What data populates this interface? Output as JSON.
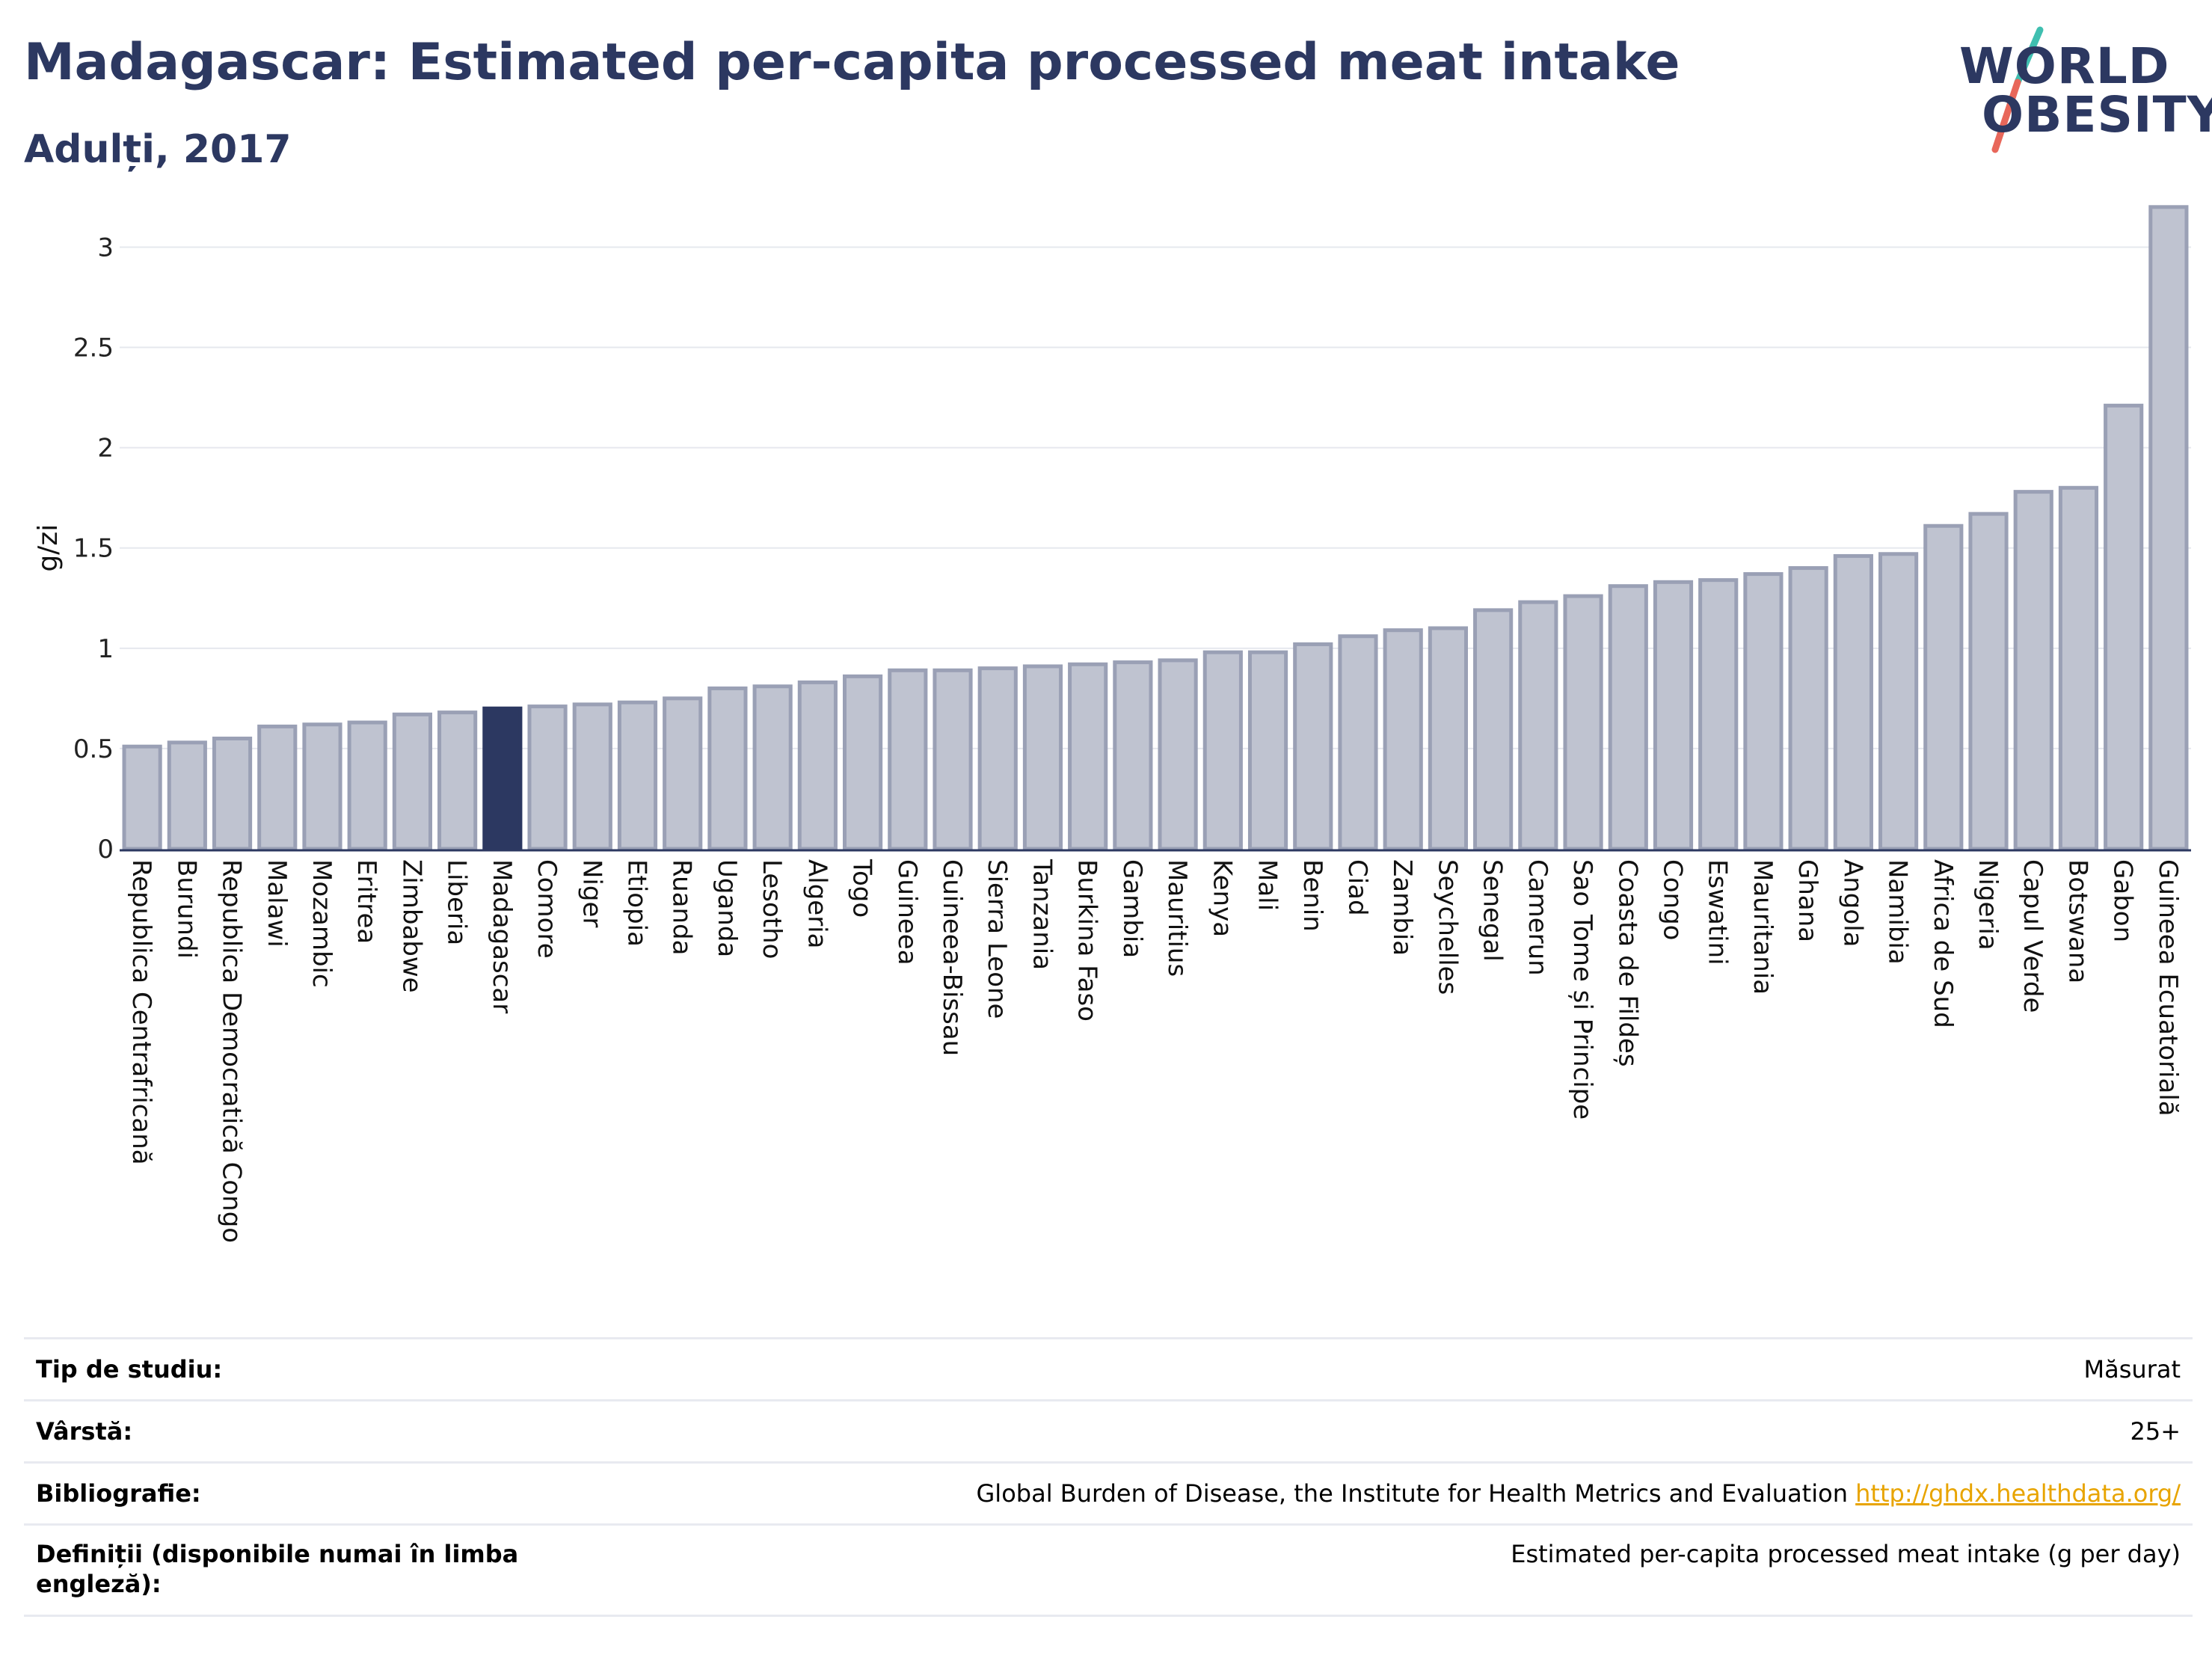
{
  "header": {
    "title": "Madagascar: Estimated per-capita processed meat intake",
    "subtitle": "Adulți, 2017"
  },
  "logo": {
    "line1": "WORLD",
    "line2": "OBESITY",
    "colors": {
      "navy": "#2c3861",
      "teal": "#3fbfb0",
      "coral": "#e8675a"
    }
  },
  "chart_data": {
    "type": "bar",
    "ylabel": "g/zi",
    "xlabel": "",
    "ylim": [
      0,
      3.3
    ],
    "yticks": [
      0,
      0.5,
      1,
      1.5,
      2,
      2.5,
      3
    ],
    "ytick_labels": [
      "0",
      "0.5",
      "1",
      "1.5",
      "2",
      "2.5",
      "3"
    ],
    "grid": true,
    "highlight": "Madagascar",
    "colors": {
      "bar": "#bfc3d0",
      "bar_outline": "#9aa0b5",
      "highlight": "#2c3861",
      "grid": "#e6e8ee",
      "axis": "#2c3861"
    },
    "categories": [
      "Republica Centrafricană",
      "Burundi",
      "Republica Democratică Congo",
      "Malawi",
      "Mozambic",
      "Eritrea",
      "Zimbabwe",
      "Liberia",
      "Madagascar",
      "Comore",
      "Niger",
      "Etiopia",
      "Ruanda",
      "Uganda",
      "Lesotho",
      "Algeria",
      "Togo",
      "Guineea",
      "Guineea-Bissau",
      "Sierra Leone",
      "Tanzania",
      "Burkina Faso",
      "Gambia",
      "Mauritius",
      "Kenya",
      "Mali",
      "Benin",
      "Ciad",
      "Zambia",
      "Seychelles",
      "Senegal",
      "Camerun",
      "Sao Tome și Principe",
      "Coasta de Fildeș",
      "Congo",
      "Eswatini",
      "Mauritania",
      "Ghana",
      "Angola",
      "Namibia",
      "Africa de Sud",
      "Nigeria",
      "Capul Verde",
      "Botswana",
      "Gabon",
      "Guineea Ecuatorială"
    ],
    "values": [
      0.51,
      0.53,
      0.55,
      0.61,
      0.62,
      0.63,
      0.67,
      0.68,
      0.7,
      0.71,
      0.72,
      0.73,
      0.75,
      0.8,
      0.81,
      0.83,
      0.86,
      0.89,
      0.89,
      0.9,
      0.91,
      0.92,
      0.93,
      0.94,
      0.98,
      0.98,
      1.02,
      1.06,
      1.09,
      1.1,
      1.19,
      1.23,
      1.26,
      1.31,
      1.33,
      1.34,
      1.37,
      1.4,
      1.46,
      1.47,
      1.61,
      1.67,
      1.78,
      1.8,
      2.21,
      3.2
    ]
  },
  "meta": [
    {
      "label": "Tip de studiu:",
      "value": "Măsurat"
    },
    {
      "label": "Vârstă:",
      "value": "25+"
    },
    {
      "label": "Bibliografie:",
      "value": "Global Burden of Disease, the Institute for Health Metrics and Evaluation",
      "link": "http://ghdx.healthdata.org/"
    },
    {
      "label": "Definiții (disponibile numai în limba engleză):",
      "value": "Estimated per-capita processed meat intake (g per day)"
    }
  ]
}
